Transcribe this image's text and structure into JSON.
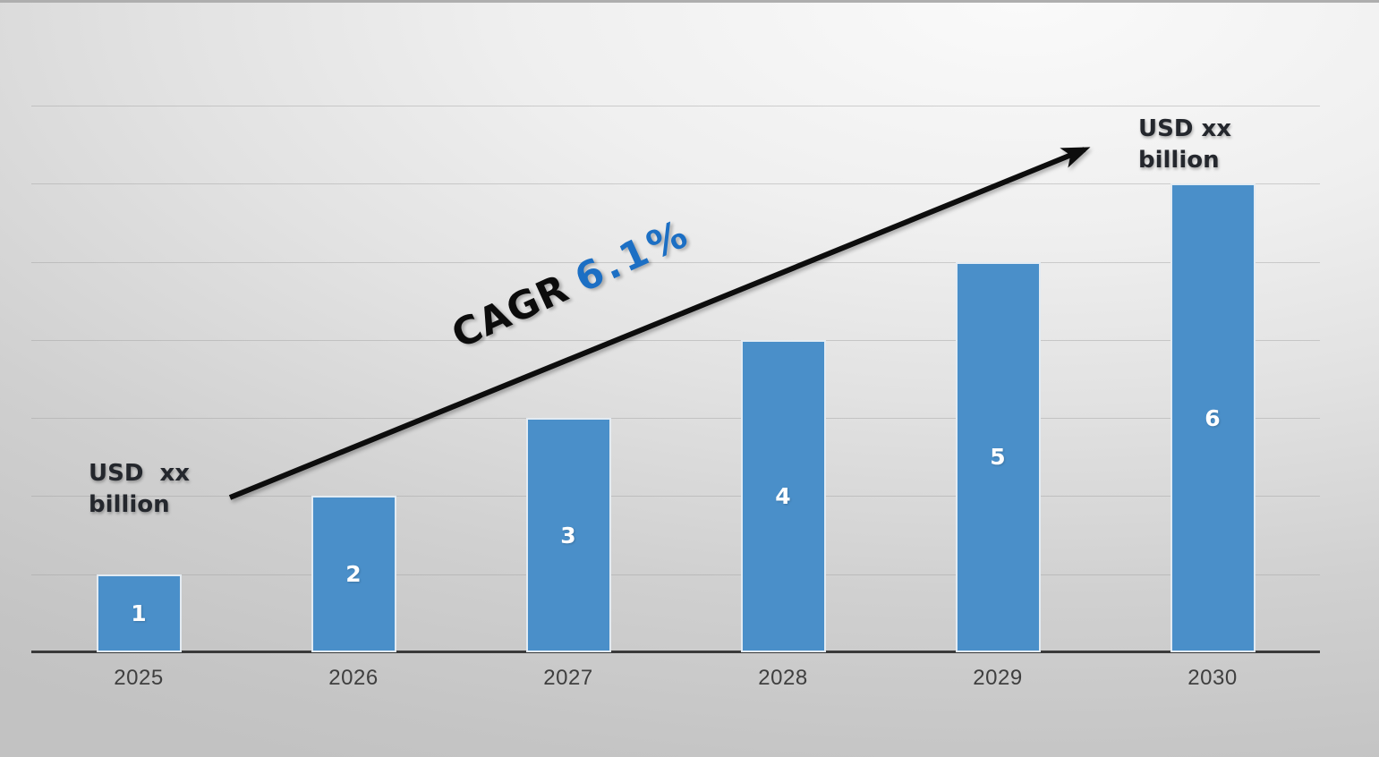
{
  "chart_data": {
    "type": "bar",
    "title": "",
    "xlabel": "",
    "ylabel": "",
    "categories": [
      "2025",
      "2026",
      "2027",
      "2028",
      "2029",
      "2030"
    ],
    "values": [
      1,
      2,
      3,
      4,
      5,
      6
    ],
    "bar_value_labels": [
      "1",
      "2",
      "3",
      "4",
      "5",
      "6"
    ],
    "ylim": [
      0,
      7
    ],
    "grid": true,
    "gridline_count": 7,
    "legend": "none",
    "bar_color": "#4A8FC9",
    "bar_border_color": "#E3EBF2",
    "axis_color": "#3A3A3A",
    "annotations": {
      "start_label": "USD  xx\nbillion",
      "end_label": "USD xx\nbillion",
      "cagr_prefix": "CAGR",
      "cagr_value": "6.1%",
      "cagr_prefix_color": "#0C0C0C",
      "cagr_value_color": "#1C6FC4",
      "arrow_color": "#0D0D0D"
    }
  }
}
